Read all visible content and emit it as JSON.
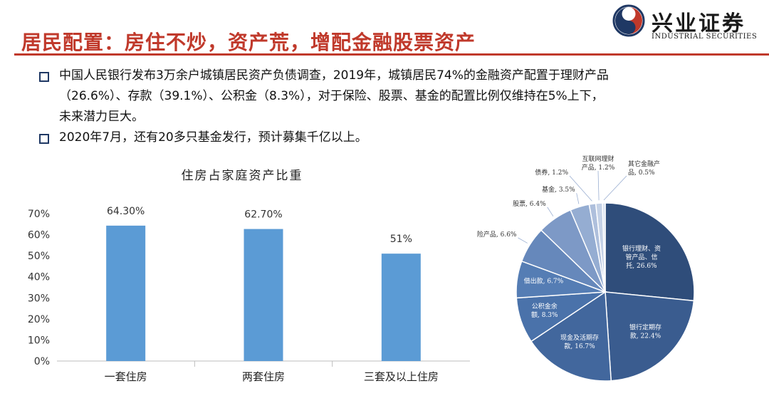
{
  "header": {
    "title": "居民配置：房住不炒，资产荒，增配金融股票资产",
    "logo_cn": "兴业证券",
    "logo_en": "INDUSTRIAL SECURITIES"
  },
  "bullets": [
    {
      "lines": [
        "中国人民银行发布3万余户城镇居民资产负债调查，2019年，城镇居民74%的金融资产配置于理财产品",
        "（26.6%）、存款（39.1%）、公积金（8.3%），对于保险、股票、基金的配置比例仅维持在5%上下，",
        "未来潜力巨大。"
      ]
    },
    {
      "lines": [
        "2020年7月，还有20多只基金发行，预计募集千亿以上。"
      ]
    }
  ],
  "colors": {
    "title_red": "#c0392b",
    "bar_blue": "#5b9bd5",
    "pie_dark": "#2f4d7a"
  },
  "chart_data": [
    {
      "type": "bar",
      "title": "住房占家庭资产比重",
      "categories": [
        "一套住房",
        "两套住房",
        "三套及以上住房"
      ],
      "values": [
        64.3,
        62.7,
        51
      ],
      "data_labels": [
        "64.30%",
        "62.70%",
        "51%"
      ],
      "y_ticks": [
        "0%",
        "10%",
        "20%",
        "30%",
        "40%",
        "50%",
        "60%",
        "70%"
      ],
      "ylim": [
        0,
        70
      ],
      "grid": false
    },
    {
      "type": "pie",
      "slices": [
        {
          "label": "银行理财、资管产品、信托, 26.6%",
          "value": 26.6,
          "color": "#2f4d7a"
        },
        {
          "label": "银行定期存款, 22.4%",
          "value": 22.4,
          "color": "#3a5c8f"
        },
        {
          "label": "现金及活期存款, 16.7%",
          "value": 16.7,
          "color": "#42679d"
        },
        {
          "label": "公积金余额, 8.3%",
          "value": 8.3,
          "color": "#4a72aa"
        },
        {
          "label": "借出款, 6.7%",
          "value": 6.7,
          "color": "#557db4"
        },
        {
          "label": "保险产品, 6.6%",
          "value": 6.6,
          "color": "#6688bb"
        },
        {
          "label": "股票, 6.4%",
          "value": 6.4,
          "color": "#7d99c6"
        },
        {
          "label": "基金, 3.5%",
          "value": 3.5,
          "color": "#95add2"
        },
        {
          "label": "债券, 1.2%",
          "value": 1.2,
          "color": "#aebfdc"
        },
        {
          "label": "互联网理财产品, 1.2%",
          "value": 1.2,
          "color": "#c4d1e6"
        },
        {
          "label": "其它金融产品, 0.5%",
          "value": 0.5,
          "color": "#d9e2f0"
        }
      ]
    }
  ]
}
